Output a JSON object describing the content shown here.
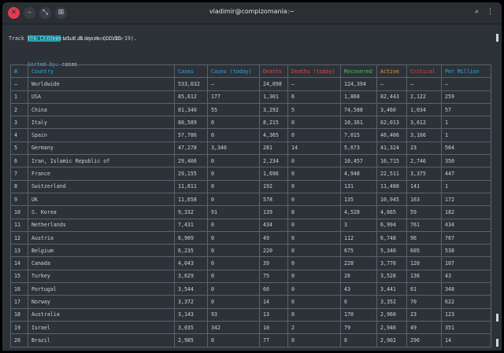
{
  "window": {
    "title": "vladimir@compizomania:~",
    "titlebar_buttons": [
      "close-icon",
      "minimize-icon",
      "restore-icon",
      "new-tab-icon"
    ],
    "toolbar_icons": [
      "search-icon",
      "menu-icon"
    ]
  },
  "header": {
    "badge": "corona-cli",
    "version": "v3.8.4",
    "by": "by Awais.dev",
    "tagline": "Track the Coronavirus disease (COVID-19).",
    "sorted_label": "Sorted by:",
    "sorted_value": "cases"
  },
  "table": {
    "columns": [
      "#",
      "Country",
      "Cases",
      "Cases (today)",
      "Deaths",
      "Deaths (today)",
      "Recovered",
      "Active",
      "Critical",
      "Per Million"
    ],
    "column_colors": [
      "#33a7e0",
      "#33a7e0",
      "#33a7e0",
      "#33a7e0",
      "#e0454f",
      "#e0454f",
      "#47c562",
      "#f0913a",
      "#e0454f",
      "#33a7e0"
    ],
    "rows": [
      [
        "—",
        "Worldwide",
        "533,032",
        "—",
        "24,098",
        "—",
        "124,394",
        "—",
        "—",
        "—"
      ],
      [
        "1",
        "USA",
        "85,612",
        "177",
        "1,301",
        "6",
        "1,868",
        "82,443",
        "2,122",
        "259"
      ],
      [
        "2",
        "China",
        "81,340",
        "55",
        "3,292",
        "5",
        "74,588",
        "3,460",
        "1,034",
        "57"
      ],
      [
        "3",
        "Italy",
        "80,589",
        "0",
        "8,215",
        "0",
        "10,361",
        "62,013",
        "3,612",
        "1"
      ],
      [
        "4",
        "Spain",
        "57,786",
        "0",
        "4,365",
        "0",
        "7,015",
        "46,406",
        "3,166",
        "1"
      ],
      [
        "5",
        "Germany",
        "47,278",
        "3,340",
        "281",
        "14",
        "5,673",
        "41,324",
        "23",
        "564"
      ],
      [
        "6",
        "Iran, Islamic Republic of",
        "29,406",
        "0",
        "2,234",
        "0",
        "10,457",
        "16,715",
        "2,746",
        "350"
      ],
      [
        "7",
        "France",
        "29,155",
        "0",
        "1,696",
        "0",
        "4,948",
        "22,511",
        "3,375",
        "447"
      ],
      [
        "8",
        "Switzerland",
        "11,811",
        "0",
        "192",
        "0",
        "131",
        "11,488",
        "141",
        "1"
      ],
      [
        "9",
        "UK",
        "11,658",
        "0",
        "578",
        "0",
        "135",
        "10,945",
        "163",
        "172"
      ],
      [
        "10",
        "S. Korea",
        "9,332",
        "91",
        "139",
        "8",
        "4,528",
        "4,665",
        "59",
        "182"
      ],
      [
        "11",
        "Netherlands",
        "7,431",
        "0",
        "434",
        "0",
        "3",
        "6,994",
        "761",
        "434"
      ],
      [
        "12",
        "Austria",
        "6,909",
        "0",
        "49",
        "0",
        "112",
        "6,748",
        "96",
        "767"
      ],
      [
        "13",
        "Belgium",
        "6,235",
        "0",
        "220",
        "0",
        "675",
        "5,340",
        "605",
        "538"
      ],
      [
        "14",
        "Canada",
        "4,043",
        "0",
        "39",
        "0",
        "228",
        "3,776",
        "120",
        "107"
      ],
      [
        "15",
        "Turkey",
        "3,629",
        "0",
        "75",
        "0",
        "26",
        "3,528",
        "136",
        "43"
      ],
      [
        "16",
        "Portugal",
        "3,544",
        "0",
        "60",
        "0",
        "43",
        "3,441",
        "61",
        "348"
      ],
      [
        "17",
        "Norway",
        "3,372",
        "0",
        "14",
        "0",
        "6",
        "3,352",
        "70",
        "622"
      ],
      [
        "18",
        "Australia",
        "3,143",
        "93",
        "13",
        "0",
        "170",
        "2,960",
        "23",
        "123"
      ],
      [
        "19",
        "Israel",
        "3,035",
        "342",
        "10",
        "2",
        "79",
        "2,946",
        "49",
        "351"
      ],
      [
        "20",
        "Brazil",
        "2,985",
        "0",
        "77",
        "0",
        "6",
        "2,902",
        "296",
        "14"
      ]
    ]
  }
}
